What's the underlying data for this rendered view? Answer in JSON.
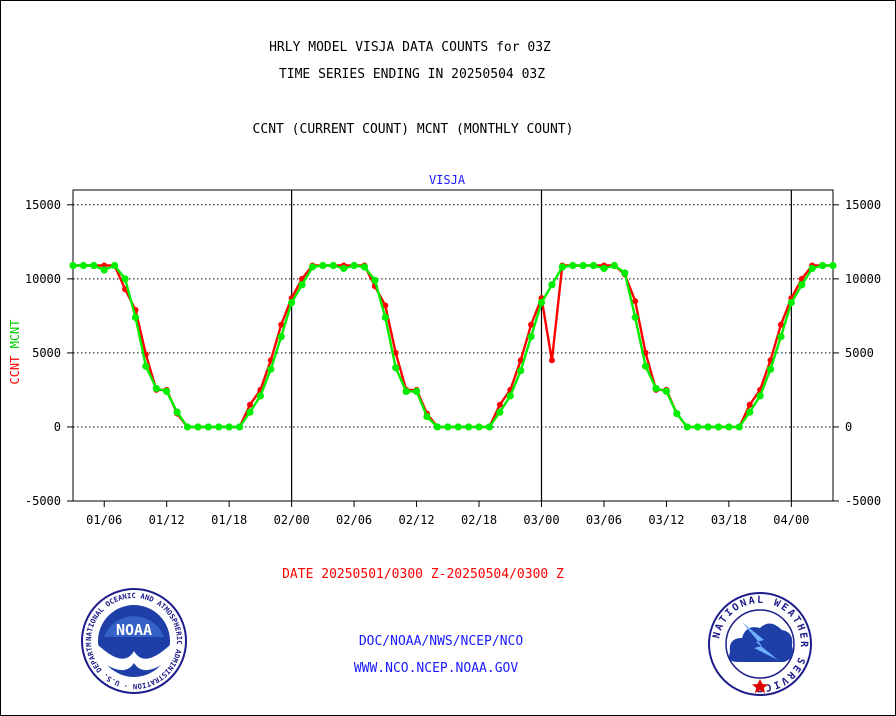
{
  "chart_data": {
    "type": "line",
    "title_lines": [
      "HRLY MODEL VISJA DATA COUNTS for 03Z",
      "TIME SERIES ENDING IN 20250504 03Z",
      "CCNT (CURRENT COUNT) MCNT (MONTHLY COUNT)"
    ],
    "panel_label": "VISJA",
    "ylabel_left_red": "CCNT",
    "ylabel_left_green": "MCNT",
    "ylim": [
      -5000,
      16000
    ],
    "yticks": [
      {
        "value": 15000,
        "label": "15000"
      },
      {
        "value": 10000,
        "label": "10000"
      },
      {
        "value": 5000,
        "label": "5000"
      },
      {
        "value": 0,
        "label": "0"
      },
      {
        "value": -5000,
        "label": "-5000"
      }
    ],
    "xlim": [
      3,
      76
    ],
    "xticks": [
      {
        "value": 6,
        "label": "01/06"
      },
      {
        "value": 12,
        "label": "01/12"
      },
      {
        "value": 18,
        "label": "01/18"
      },
      {
        "value": 24,
        "label": "02/00"
      },
      {
        "value": 30,
        "label": "02/06"
      },
      {
        "value": 36,
        "label": "02/12"
      },
      {
        "value": 42,
        "label": "02/18"
      },
      {
        "value": 48,
        "label": "03/00"
      },
      {
        "value": 54,
        "label": "03/06"
      },
      {
        "value": 60,
        "label": "03/12"
      },
      {
        "value": 66,
        "label": "03/18"
      },
      {
        "value": 72,
        "label": "04/00"
      }
    ],
    "day_boundaries": [
      24,
      48,
      72
    ],
    "gridlines_y": [
      15000,
      10000,
      5000,
      0
    ],
    "series": [
      {
        "name": "CCNT",
        "color": "#ff0000",
        "x": [
          3,
          4,
          5,
          6,
          7,
          8,
          9,
          10,
          11,
          12,
          13,
          14,
          15,
          16,
          17,
          18,
          19,
          20,
          21,
          22,
          23,
          24,
          25,
          26,
          27,
          28,
          29,
          30,
          31,
          32,
          33,
          34,
          35,
          36,
          37,
          38,
          39,
          40,
          41,
          42,
          43,
          44,
          45,
          46,
          47,
          48,
          49,
          50,
          51,
          52,
          53,
          54,
          55,
          56,
          57,
          58,
          59,
          60,
          61,
          62,
          63,
          64,
          65,
          66,
          67,
          68,
          69,
          70,
          71,
          72,
          73,
          74,
          75,
          76
        ],
        "y": [
          10900,
          10900,
          10900,
          10900,
          10900,
          9300,
          7900,
          4900,
          2500,
          2500,
          900,
          0,
          0,
          0,
          0,
          0,
          0,
          1500,
          2500,
          4500,
          6900,
          8700,
          10000,
          10900,
          10900,
          10900,
          10900,
          10900,
          10900,
          9500,
          8200,
          5000,
          2500,
          2500,
          900,
          0,
          0,
          0,
          0,
          0,
          0,
          1500,
          2500,
          4500,
          6900,
          8700,
          4500,
          10900,
          10900,
          10900,
          10900,
          10900,
          10900,
          10300,
          8500,
          5000,
          2500,
          2500,
          900,
          0,
          0,
          0,
          0,
          0,
          0,
          1500,
          2500,
          4500,
          6900,
          8700,
          10000,
          10900,
          10900,
          10900
        ]
      },
      {
        "name": "MCNT",
        "color": "#00ee00",
        "x": [
          3,
          4,
          5,
          6,
          7,
          8,
          9,
          10,
          11,
          12,
          13,
          14,
          15,
          16,
          17,
          18,
          19,
          20,
          21,
          22,
          23,
          24,
          25,
          26,
          27,
          28,
          29,
          30,
          31,
          32,
          33,
          34,
          35,
          36,
          37,
          38,
          39,
          40,
          41,
          42,
          43,
          44,
          45,
          46,
          47,
          48,
          49,
          50,
          51,
          52,
          53,
          54,
          55,
          56,
          57,
          58,
          59,
          60,
          61,
          62,
          63,
          64,
          65,
          66,
          67,
          68,
          69,
          70,
          71,
          72,
          73,
          74,
          75,
          76
        ],
        "y": [
          10900,
          10900,
          10900,
          10600,
          10900,
          10000,
          7400,
          4100,
          2600,
          2400,
          1000,
          0,
          0,
          0,
          0,
          0,
          0,
          1000,
          2100,
          3900,
          6100,
          8400,
          9600,
          10800,
          10900,
          10900,
          10700,
          10900,
          10800,
          9900,
          7400,
          4000,
          2400,
          2400,
          700,
          0,
          0,
          0,
          0,
          0,
          0,
          1000,
          2100,
          3800,
          6100,
          8400,
          9600,
          10800,
          10900,
          10900,
          10900,
          10700,
          10900,
          10400,
          7400,
          4100,
          2600,
          2400,
          900,
          0,
          0,
          0,
          0,
          0,
          0,
          1000,
          2100,
          3900,
          6100,
          8400,
          9600,
          10700,
          10900,
          10900
        ]
      }
    ],
    "date_range_label": "DATE 20250501/0300 Z-20250504/0300 Z",
    "footer_lines": [
      "DOC/NOAA/NWS/NCEP/NCO",
      "WWW.NCO.NCEP.NOAA.GOV"
    ],
    "logos": {
      "left": {
        "icon": "noaa-logo",
        "text": "NOAA",
        "ring_text": "NATIONAL OCEANIC AND ATMOSPHERIC ADMINISTRATION · U.S. DEPARTMENT OF COMMERCE"
      },
      "right": {
        "icon": "nws-logo",
        "ring_text": "NATIONAL WEATHER SERVICE"
      }
    }
  }
}
